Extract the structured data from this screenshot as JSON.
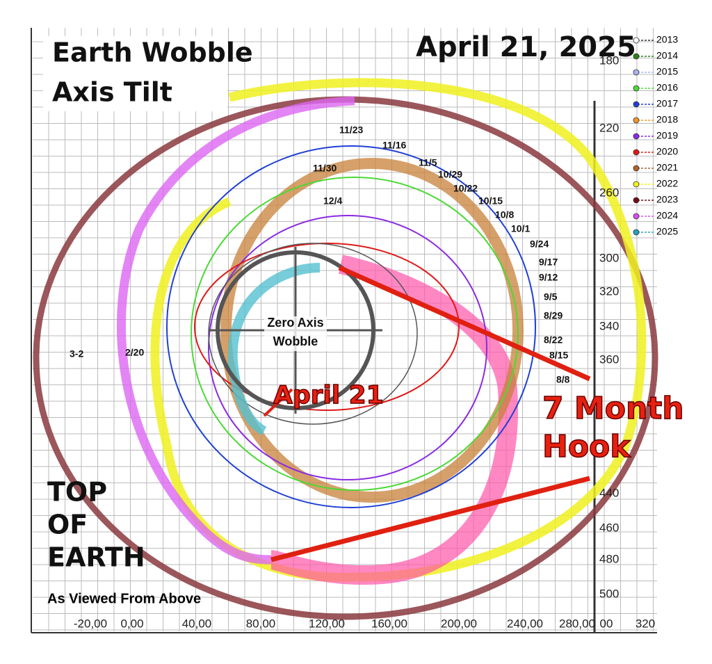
{
  "header": {
    "title_line1": "Earth Wobble",
    "title_line2": "Axis Tilt",
    "date": "April 21, 2025"
  },
  "legend": [
    {
      "label": "2013",
      "color": "#ffffff"
    },
    {
      "label": "2014",
      "color": "#2e7d1e"
    },
    {
      "label": "2015",
      "color": "#aab4f0"
    },
    {
      "label": "2016",
      "color": "#4cd936"
    },
    {
      "label": "2017",
      "color": "#1f3fd6"
    },
    {
      "label": "2018",
      "color": "#f0962a"
    },
    {
      "label": "2019",
      "color": "#8a2be2"
    },
    {
      "label": "2020",
      "color": "#e01818"
    },
    {
      "label": "2021",
      "color": "#b0622a"
    },
    {
      "label": "2022",
      "color": "#f2f21a"
    },
    {
      "label": "2023",
      "color": "#6e0f14"
    },
    {
      "label": "2024",
      "color": "#d84ef0"
    },
    {
      "label": "2025",
      "color": "#2aa0b8"
    }
  ],
  "x_axis": {
    "ticks": [
      "-20,00",
      "0,00",
      "40,00",
      "80,00",
      "120,00",
      "160,00",
      "200,00",
      "240,00",
      "280,00",
      "00",
      "320"
    ]
  },
  "y_axis": {
    "ticks": [
      "180",
      "220",
      "260",
      "300",
      "320",
      "340",
      "360",
      "440",
      "460",
      "480",
      "500"
    ]
  },
  "center": {
    "label_line1": "Zero Axis",
    "label_line2": "Wobble"
  },
  "annotations": {
    "april": "April 21",
    "hook_line1": "7 Month",
    "hook_line2": "Hook",
    "side_line1": "TOP",
    "side_line2": "OF",
    "side_line3": "EARTH",
    "caption": "As Viewed From Above"
  },
  "dates": [
    "11/23",
    "11/16",
    "11/5",
    "10/29",
    "10/22",
    "10/15",
    "10/8",
    "10/1",
    "9/24",
    "9/17",
    "9/12",
    "9/5",
    "8/29",
    "8/22",
    "8/15",
    "8/8",
    "11/30",
    "12/4",
    "2/20",
    "3-2"
  ]
}
